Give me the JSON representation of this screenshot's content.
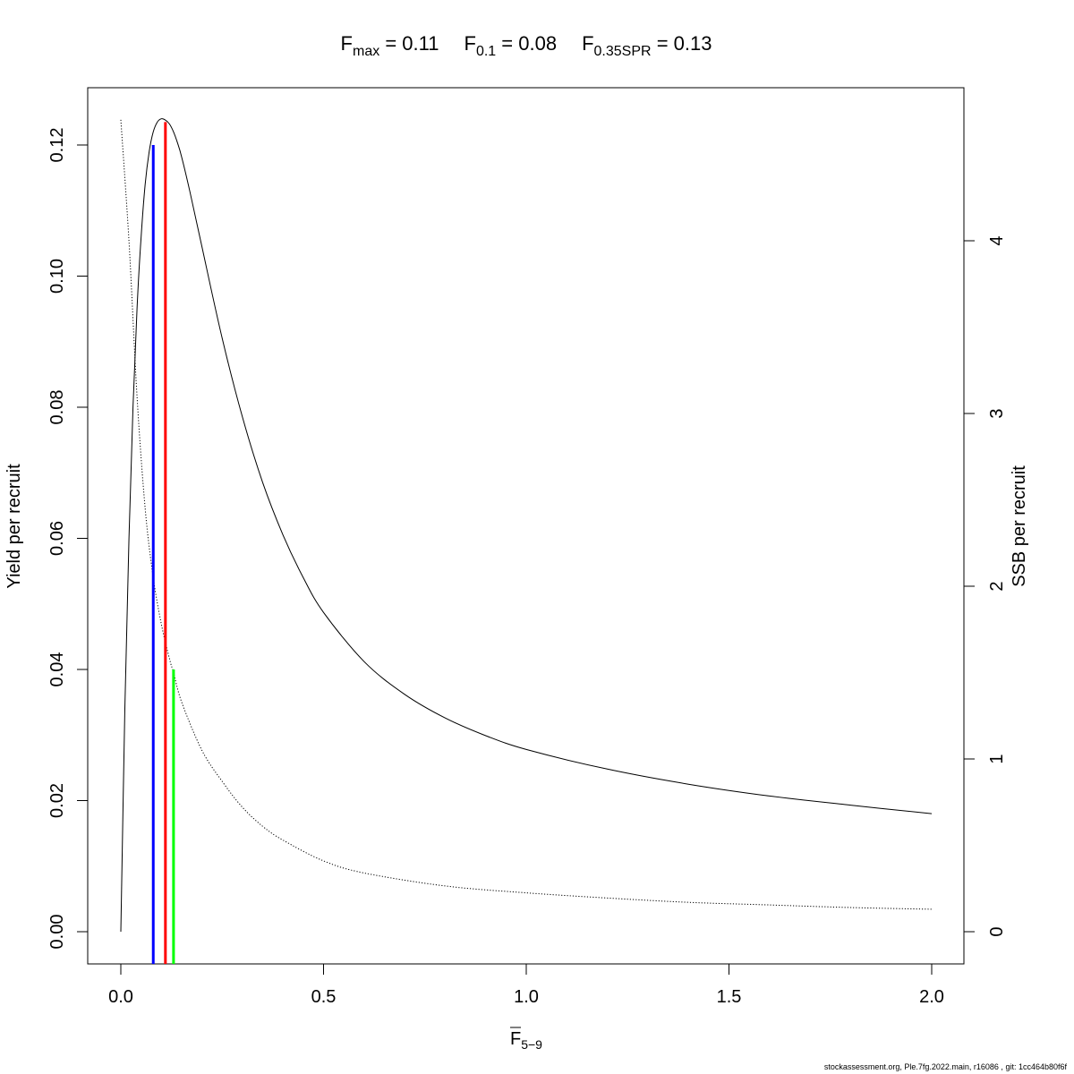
{
  "title_parts": [
    {
      "base": "F",
      "sub": "max",
      "value": "0.11"
    },
    {
      "base": "F",
      "sub": "0.1",
      "value": "0.08"
    },
    {
      "base": "F",
      "sub": "0.35SPR",
      "value": "0.13"
    }
  ],
  "footer": "stockassessment.org, Ple.7fg.2022.main, r16086 , git: 1cc464b80f6f",
  "chart_data": {
    "type": "line",
    "xlabel_base": "F",
    "xlabel_sub": "5−9",
    "ylabel_left": "Yield per recruit",
    "ylabel_right": "SSB per recruit",
    "xlim": [
      0,
      2.0
    ],
    "ylim_left": [
      0,
      0.12
    ],
    "ylim_right": [
      0,
      4.5
    ],
    "x_ticks": [
      "0.0",
      "0.5",
      "1.0",
      "1.5",
      "2.0"
    ],
    "y_left_ticks": [
      "0.00",
      "0.02",
      "0.04",
      "0.06",
      "0.08",
      "0.10",
      "0.12"
    ],
    "y_right_ticks": [
      "0",
      "1",
      "2",
      "3",
      "4"
    ],
    "grid": false,
    "legend": "none",
    "series": [
      {
        "axis": "left",
        "style": "solid",
        "color": "#000000",
        "x": [
          0,
          0.01,
          0.02,
          0.03,
          0.04,
          0.05,
          0.06,
          0.07,
          0.08,
          0.09,
          0.1,
          0.11,
          0.12,
          0.13,
          0.14,
          0.15,
          0.17,
          0.2,
          0.25,
          0.3,
          0.35,
          0.4,
          0.45,
          0.5,
          0.6,
          0.7,
          0.8,
          0.9,
          1.0,
          1.2,
          1.4,
          1.6,
          1.8,
          2.0
        ],
        "y": [
          0,
          0.034,
          0.06,
          0.08,
          0.095,
          0.106,
          0.114,
          0.119,
          0.122,
          0.1235,
          0.124,
          0.1238,
          0.1232,
          0.122,
          0.1203,
          0.1182,
          0.113,
          0.1045,
          0.0905,
          0.0785,
          0.0685,
          0.0605,
          0.054,
          0.0487,
          0.0412,
          0.0362,
          0.0326,
          0.0299,
          0.0278,
          0.0248,
          0.0225,
          0.0207,
          0.0193,
          0.018
        ]
      },
      {
        "axis": "right",
        "style": "dotted",
        "color": "#000000",
        "x": [
          0,
          0.02,
          0.04,
          0.06,
          0.08,
          0.1,
          0.12,
          0.13,
          0.15,
          0.2,
          0.25,
          0.3,
          0.35,
          0.4,
          0.5,
          0.6,
          0.8,
          1.0,
          1.2,
          1.4,
          1.6,
          1.8,
          2.0
        ],
        "y": [
          4.7,
          4.0,
          3.1,
          2.45,
          2.05,
          1.78,
          1.58,
          1.5,
          1.33,
          1.05,
          0.87,
          0.72,
          0.61,
          0.53,
          0.41,
          0.34,
          0.265,
          0.225,
          0.195,
          0.17,
          0.155,
          0.14,
          0.13
        ]
      }
    ],
    "reference_lines": [
      {
        "name": "F0.1",
        "x": 0.08,
        "y_top": 0.12,
        "color": "#0000ff"
      },
      {
        "name": "Fmax",
        "x": 0.11,
        "y_top": 0.1235,
        "color": "#ff0000"
      },
      {
        "name": "F0.35SPR",
        "x": 0.13,
        "y_top": 0.04,
        "color": "#00ff00"
      }
    ]
  }
}
